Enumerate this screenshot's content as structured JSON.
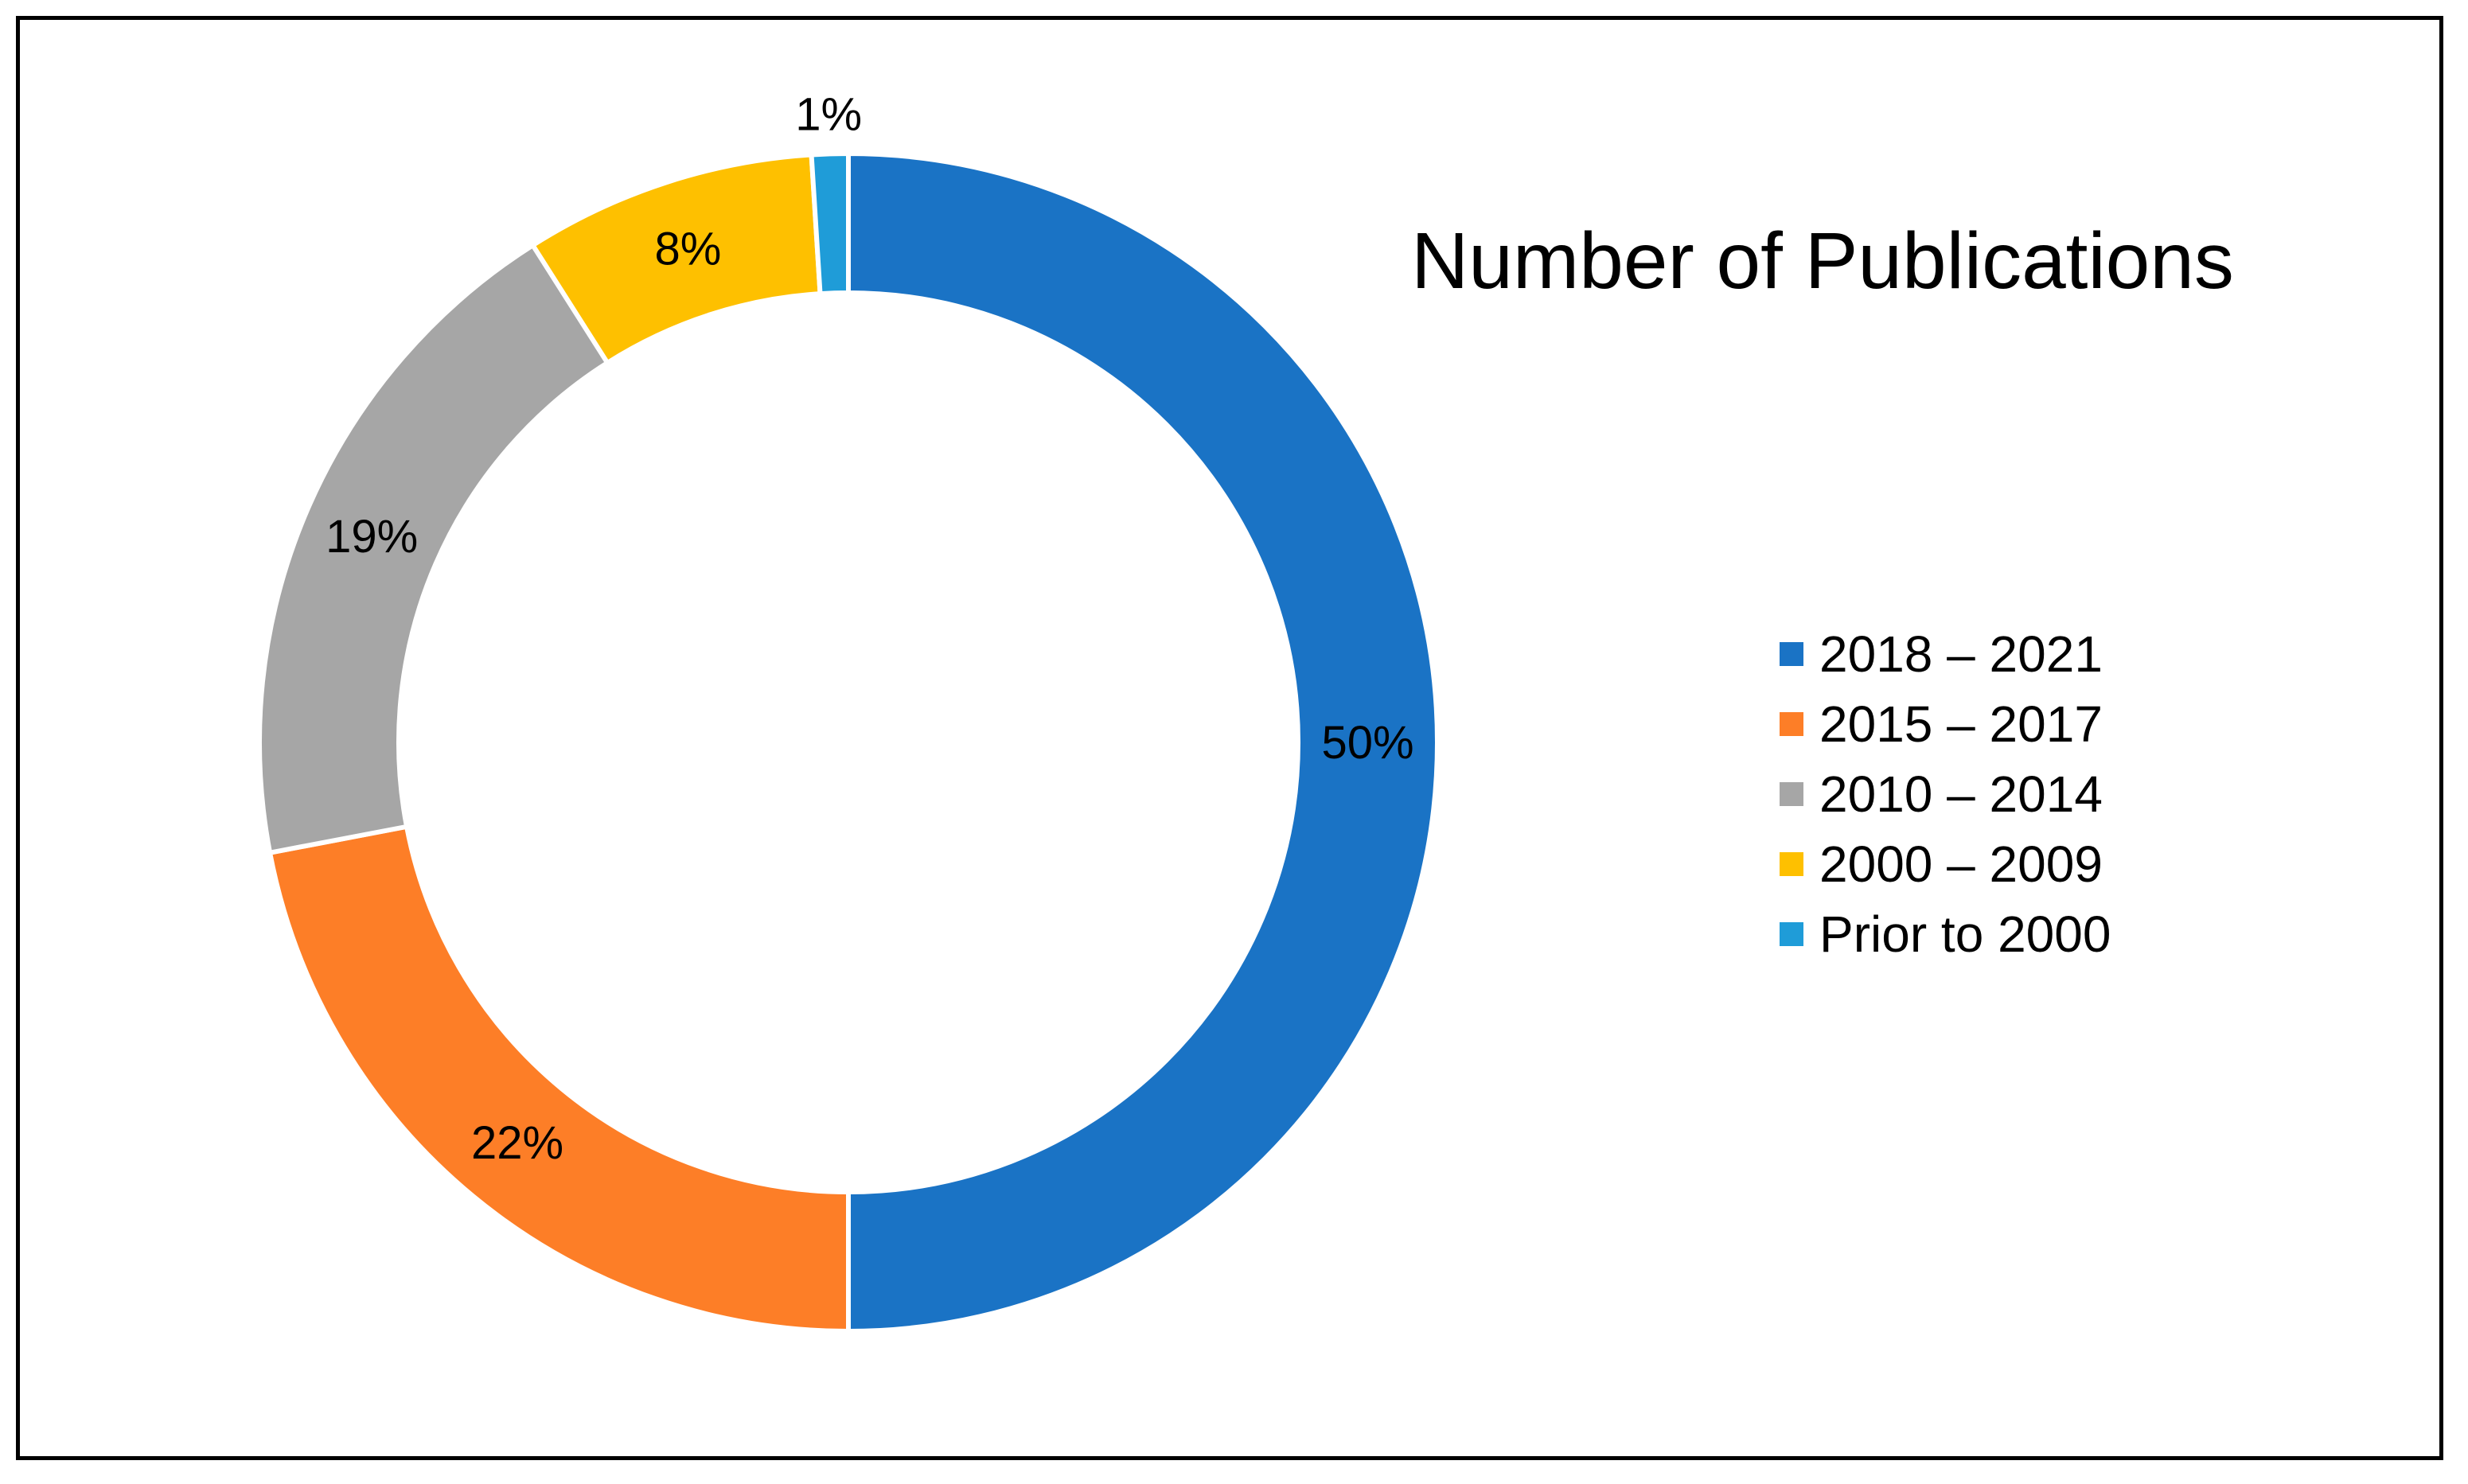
{
  "chart_data": {
    "type": "pie",
    "subtype": "doughnut",
    "title": "Number of Publications",
    "categories": [
      "2018 – 2021",
      "2015 – 2017",
      "2010 – 2014",
      "2000 – 2009",
      "Prior to 2000"
    ],
    "values": [
      50,
      22,
      19,
      8,
      1
    ],
    "labels": [
      "50%",
      "22%",
      "19%",
      "8%",
      "1%"
    ],
    "colors": [
      "#1a73c5",
      "#fd7e27",
      "#a6a6a6",
      "#fec000",
      "#1f9cd8"
    ],
    "legend_placement": "right"
  }
}
